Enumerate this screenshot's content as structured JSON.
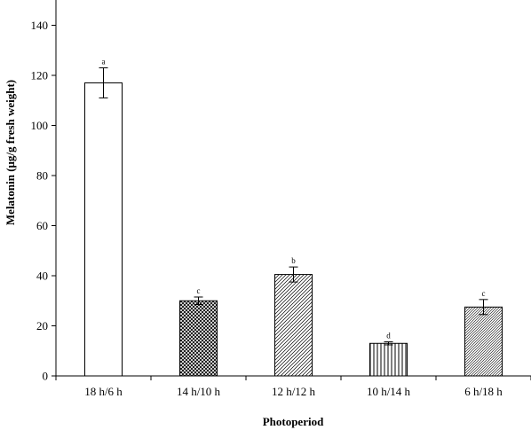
{
  "chart_data": {
    "type": "bar",
    "title": "",
    "xlabel": "Photoperiod",
    "ylabel": "Melatonin (μg/g fresh weight)",
    "ylim": [
      0,
      150
    ],
    "yticks": [
      0,
      20,
      40,
      60,
      80,
      100,
      120,
      140
    ],
    "categories": [
      "18 h/6 h",
      "14 h/10 h",
      "12 h/12 h",
      "10 h/14 h",
      "6 h/18 h"
    ],
    "values": [
      117,
      30,
      40.5,
      13,
      27.5
    ],
    "errors": [
      6,
      1.5,
      3,
      0.6,
      3
    ],
    "significance": [
      "a",
      "c",
      "b",
      "d",
      "c"
    ],
    "patterns": [
      "none",
      "crosshatch-dense",
      "diagonal",
      "vertical-lines",
      "diagonal-fine"
    ]
  }
}
